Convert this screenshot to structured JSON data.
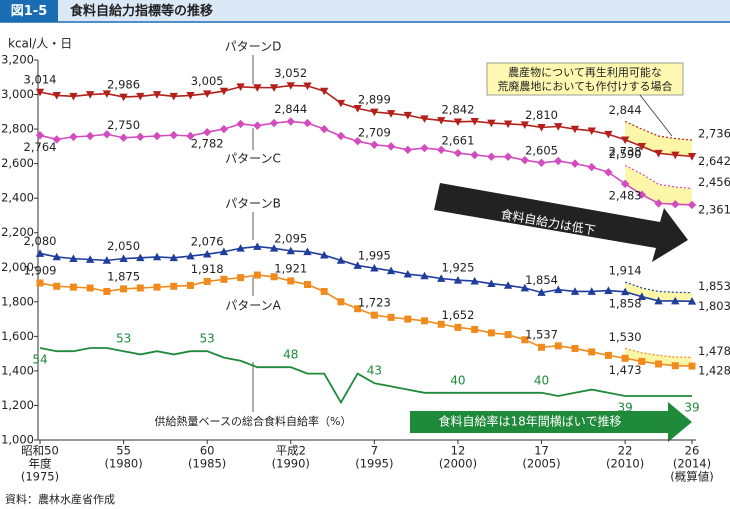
{
  "header": {
    "badge": "図1-5",
    "title": "食料自給力指標等の推移"
  },
  "chart_data": {
    "type": "line",
    "y_unit": "kcal/人・日",
    "x": [
      1975,
      1976,
      1977,
      1978,
      1979,
      1980,
      1981,
      1982,
      1983,
      1984,
      1985,
      1986,
      1987,
      1988,
      1989,
      1990,
      1991,
      1992,
      1993,
      1994,
      1995,
      1996,
      1997,
      1998,
      1999,
      2000,
      2001,
      2002,
      2003,
      2004,
      2005,
      2006,
      2007,
      2008,
      2009,
      2010,
      2011,
      2012,
      2013,
      2014
    ],
    "xlim": [
      1975,
      2014
    ],
    "xticks": [
      {
        "value": 1975,
        "label": [
          "昭和50",
          "年度",
          "(1975)"
        ]
      },
      {
        "value": 1980,
        "label": [
          "55",
          "(1980)"
        ]
      },
      {
        "value": 1985,
        "label": [
          "60",
          "(1985)"
        ]
      },
      {
        "value": 1990,
        "label": [
          "平成2",
          "(1990)"
        ]
      },
      {
        "value": 1995,
        "label": [
          "7",
          "(1995)"
        ]
      },
      {
        "value": 2000,
        "label": [
          "12",
          "(2000)"
        ]
      },
      {
        "value": 2005,
        "label": [
          "17",
          "(2005)"
        ]
      },
      {
        "value": 2010,
        "label": [
          "22",
          "(2010)"
        ]
      },
      {
        "value": 2014,
        "label": [
          "26",
          "(2014)",
          "(概算値)"
        ]
      }
    ],
    "ylim": [
      1000,
      3200
    ],
    "yticks": [
      {
        "value": 1000,
        "label": "1,000"
      },
      {
        "value": 1200,
        "label": "1,200"
      },
      {
        "value": 1400,
        "label": "1,400"
      },
      {
        "value": 1600,
        "label": "1,600"
      },
      {
        "value": 1800,
        "label": "1,800"
      },
      {
        "value": 2000,
        "label": "2,000"
      },
      {
        "value": 2200,
        "label": "2,200"
      },
      {
        "value": 2400,
        "label": "2,400"
      },
      {
        "value": 2600,
        "label": "2,600"
      },
      {
        "value": 2800,
        "label": "2,800"
      },
      {
        "value": 3000,
        "label": "3,000"
      },
      {
        "value": 3200,
        "label": "3,200"
      }
    ],
    "y2lim": [
      25.25,
      144
    ],
    "series": [
      {
        "name": "パターンD",
        "color": "#b3201b",
        "marker": "triangle-down",
        "values": [
          3014,
          2995,
          2990,
          3000,
          3005,
          2986,
          2990,
          3000,
          2990,
          2995,
          3005,
          3020,
          3045,
          3040,
          3040,
          3052,
          3050,
          3020,
          2950,
          2920,
          2899,
          2890,
          2880,
          2860,
          2850,
          2842,
          2845,
          2835,
          2830,
          2825,
          2810,
          2815,
          2800,
          2790,
          2770,
          2738,
          2700,
          2660,
          2650,
          2642
        ],
        "value_labels": [
          "3,014",
          null,
          null,
          null,
          null,
          "2,986",
          null,
          null,
          null,
          null,
          "3,005",
          null,
          null,
          null,
          null,
          "3,052",
          null,
          null,
          null,
          null,
          "2,899",
          null,
          null,
          null,
          null,
          "2,842",
          null,
          null,
          null,
          null,
          "2,810",
          null,
          null,
          null,
          null,
          "2,738",
          null,
          null,
          null,
          "2,642"
        ],
        "upper": {
          "x": [
            2010,
            2011,
            2012,
            2013,
            2014
          ],
          "values": [
            2844,
            2800,
            2760,
            2745,
            2736
          ],
          "value_labels": [
            "2,844",
            null,
            null,
            null,
            "2,736"
          ]
        }
      },
      {
        "name": "パターンC",
        "color": "#d24cbe",
        "marker": "diamond",
        "values": [
          2764,
          2740,
          2755,
          2760,
          2770,
          2750,
          2755,
          2760,
          2765,
          2760,
          2782,
          2800,
          2830,
          2820,
          2835,
          2844,
          2835,
          2800,
          2760,
          2730,
          2709,
          2700,
          2680,
          2690,
          2680,
          2661,
          2650,
          2640,
          2640,
          2620,
          2605,
          2615,
          2600,
          2580,
          2550,
          2483,
          2420,
          2370,
          2365,
          2361
        ],
        "value_labels": [
          "2,764",
          null,
          null,
          null,
          null,
          "2,750",
          null,
          null,
          null,
          null,
          "2,782",
          null,
          null,
          null,
          null,
          "2,844",
          null,
          null,
          null,
          null,
          "2,709",
          null,
          null,
          null,
          null,
          "2,661",
          null,
          null,
          null,
          null,
          "2,605",
          null,
          null,
          null,
          null,
          "2,483",
          null,
          null,
          null,
          "2,361"
        ],
        "upper": {
          "x": [
            2010,
            2011,
            2012,
            2013,
            2014
          ],
          "values": [
            2590,
            2540,
            2480,
            2465,
            2456
          ],
          "value_labels": [
            "2,590",
            null,
            null,
            null,
            "2,456"
          ]
        }
      },
      {
        "name": "パターンB",
        "color": "#1f3e9c",
        "marker": "triangle-up",
        "values": [
          2080,
          2060,
          2050,
          2045,
          2040,
          2050,
          2055,
          2060,
          2055,
          2065,
          2076,
          2090,
          2110,
          2120,
          2110,
          2095,
          2090,
          2070,
          2040,
          2010,
          1995,
          1980,
          1960,
          1950,
          1935,
          1925,
          1920,
          1905,
          1895,
          1880,
          1854,
          1870,
          1860,
          1860,
          1865,
          1858,
          1830,
          1805,
          1805,
          1803
        ],
        "value_labels": [
          "2,080",
          null,
          null,
          null,
          null,
          "2,050",
          null,
          null,
          null,
          null,
          "2,076",
          null,
          null,
          null,
          null,
          "2,095",
          null,
          null,
          null,
          null,
          "1,995",
          null,
          null,
          null,
          null,
          "1,925",
          null,
          null,
          null,
          null,
          "1,854",
          null,
          null,
          null,
          null,
          "1,858",
          null,
          null,
          null,
          "1,803"
        ],
        "upper": {
          "x": [
            2010,
            2011,
            2012,
            2013,
            2014
          ],
          "values": [
            1914,
            1880,
            1860,
            1855,
            1853
          ],
          "value_labels": [
            "1,914",
            null,
            null,
            null,
            "1,853"
          ]
        }
      },
      {
        "name": "パターンA",
        "color": "#f08a1c",
        "marker": "square",
        "values": [
          1909,
          1890,
          1885,
          1880,
          1860,
          1875,
          1880,
          1885,
          1890,
          1895,
          1918,
          1930,
          1940,
          1955,
          1945,
          1921,
          1900,
          1860,
          1800,
          1760,
          1723,
          1710,
          1700,
          1690,
          1670,
          1652,
          1640,
          1620,
          1610,
          1580,
          1537,
          1545,
          1530,
          1510,
          1490,
          1473,
          1455,
          1440,
          1430,
          1428
        ],
        "value_labels": [
          "1,909",
          null,
          null,
          null,
          null,
          "1,875",
          null,
          null,
          null,
          null,
          "1,918",
          null,
          null,
          null,
          null,
          "1,921",
          null,
          null,
          null,
          null,
          "1,723",
          null,
          null,
          null,
          null,
          "1,652",
          null,
          null,
          null,
          null,
          "1,537",
          null,
          null,
          null,
          null,
          "1,473",
          null,
          null,
          null,
          "1,428"
        ],
        "upper": {
          "x": [
            2010,
            2011,
            2012,
            2013,
            2014
          ],
          "values": [
            1530,
            1505,
            1490,
            1480,
            1478
          ],
          "value_labels": [
            "1,530",
            null,
            null,
            null,
            "1,478"
          ]
        }
      },
      {
        "name": "供給熱量ベースの総合食料自給率（%）",
        "color": "#1e8a3a",
        "marker": "none",
        "axis": "y2",
        "values": [
          54,
          53,
          53,
          54,
          54,
          53,
          52,
          53,
          52,
          53,
          53,
          51,
          50,
          48,
          48,
          48,
          46,
          46,
          37,
          46,
          43,
          42,
          41,
          40,
          40,
          40,
          40,
          40,
          40,
          40,
          40,
          39,
          40,
          41,
          40,
          39,
          39,
          39,
          39,
          39
        ],
        "value_labels": [
          "54",
          null,
          null,
          null,
          null,
          "53",
          null,
          null,
          null,
          null,
          "53",
          null,
          null,
          null,
          null,
          "48",
          null,
          null,
          null,
          null,
          "43",
          null,
          null,
          null,
          null,
          "40",
          null,
          null,
          null,
          null,
          "40",
          null,
          null,
          null,
          null,
          "39",
          null,
          null,
          null,
          "39"
        ]
      }
    ],
    "annotations": {
      "note": [
        "農産物について再生利用可能な",
        "荒廃農地においても作付けする場合"
      ],
      "trend_capacity": "食料自給力は低下",
      "trend_rate": "食料自給率は18年間横ばいで推移"
    }
  },
  "footer": {
    "source": "資料：農林水産省作成"
  }
}
